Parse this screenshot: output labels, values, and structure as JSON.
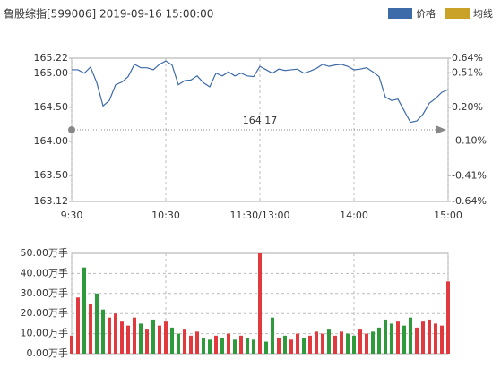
{
  "chart_data": [
    {
      "type": "line",
      "title": "鲁股综指[599006] 2019-09-16 15:00:00",
      "legend": [
        {
          "name": "价格",
          "color": "#3d6aa8"
        },
        {
          "name": "均线",
          "color": "#c9a227"
        }
      ],
      "x": [
        0,
        4,
        8,
        12,
        16,
        20,
        24,
        28,
        32,
        36,
        40,
        44,
        48,
        52,
        56,
        60,
        64,
        68,
        72,
        76,
        80,
        84,
        88,
        92,
        96,
        100,
        104,
        108,
        112,
        116,
        120,
        124,
        128,
        132,
        136,
        140,
        144,
        148,
        152,
        156,
        160,
        164,
        168,
        172,
        176,
        180,
        184,
        188,
        192,
        196,
        200,
        204,
        208,
        212,
        216,
        220,
        224,
        228,
        232,
        236,
        240
      ],
      "series": [
        {
          "name": "价格",
          "color": "#3d6aa8",
          "values": [
            165.05,
            165.05,
            165.0,
            165.09,
            164.86,
            164.52,
            164.6,
            164.83,
            164.87,
            164.95,
            165.13,
            165.08,
            165.08,
            165.05,
            165.13,
            165.18,
            165.12,
            164.83,
            164.89,
            164.9,
            164.96,
            164.86,
            164.8,
            165.0,
            164.96,
            165.02,
            164.96,
            165.0,
            164.96,
            164.95,
            165.1,
            165.05,
            165.0,
            165.06,
            165.04,
            165.05,
            165.06,
            165.0,
            165.03,
            165.07,
            165.13,
            165.1,
            165.12,
            165.13,
            165.1,
            165.05,
            165.06,
            165.08,
            165.02,
            164.95,
            164.65,
            164.6,
            164.62,
            164.45,
            164.28,
            164.3,
            164.4,
            164.56,
            164.63,
            164.72,
            164.76
          ]
        }
      ],
      "reference_line": 164.17,
      "xlim": [
        0,
        240
      ],
      "xticks": [
        {
          "value": 0,
          "label": "9:30"
        },
        {
          "value": 60,
          "label": "10:30"
        },
        {
          "value": 120,
          "label": "11:30/13:00"
        },
        {
          "value": 180,
          "label": "14:00"
        },
        {
          "value": 240,
          "label": "15:00"
        }
      ],
      "ylim": [
        163.12,
        165.22
      ],
      "yticks": [
        165.22,
        {
          "value": 165,
          "label": "165.00"
        },
        {
          "value": 164.5,
          "label": "164.50"
        },
        {
          "value": 164,
          "label": "164.00"
        },
        {
          "value": 163.5,
          "label": "163.50"
        },
        163.12
      ],
      "y2lim": [
        -0.64,
        0.64
      ],
      "y2ticks": [
        {
          "value": 0.64,
          "label": "0.64%"
        },
        {
          "value": 0.51,
          "label": "0.51%"
        },
        {
          "value": 0.2,
          "label": "0.20%"
        },
        {
          "value": -0.1,
          "label": "-0.10%"
        },
        {
          "value": -0.41,
          "label": "-0.41%"
        },
        {
          "value": -0.64,
          "label": "-0.64%"
        }
      ],
      "up_color": "#e0393e",
      "down_color": "#2e9a3b"
    },
    {
      "type": "bar",
      "x": [
        0,
        4,
        8,
        12,
        16,
        20,
        24,
        28,
        32,
        36,
        40,
        44,
        48,
        52,
        56,
        60,
        64,
        68,
        72,
        76,
        80,
        84,
        88,
        92,
        96,
        100,
        104,
        108,
        112,
        116,
        120,
        124,
        128,
        132,
        136,
        140,
        144,
        148,
        152,
        156,
        160,
        164,
        168,
        172,
        176,
        180,
        184,
        188,
        192,
        196,
        200,
        204,
        208,
        212,
        216,
        220,
        224,
        228,
        232,
        236,
        240
      ],
      "values": [
        9,
        28,
        43,
        25,
        30,
        22,
        18,
        20,
        16,
        14,
        18,
        15,
        12,
        17,
        14,
        16,
        13,
        10,
        12,
        9,
        11,
        8,
        7,
        9,
        8,
        10,
        7,
        9,
        8,
        7,
        50,
        6,
        18,
        8,
        9,
        7,
        10,
        8,
        9,
        11,
        10,
        12,
        9,
        11,
        10,
        9,
        12,
        10,
        11,
        13,
        17,
        15,
        16,
        14,
        18,
        13,
        16,
        17,
        15,
        14,
        36
      ],
      "xlim": [
        0,
        240
      ],
      "ylim": [
        0,
        50
      ],
      "yticks": [
        {
          "value": 0,
          "label": "0.00万手"
        },
        {
          "value": 10,
          "label": "10.00万手"
        },
        {
          "value": 20,
          "label": "20.00万手"
        },
        {
          "value": 30,
          "label": "30.00万手"
        },
        {
          "value": 40,
          "label": "40.00万手"
        },
        {
          "value": 50,
          "label": "50.00万手"
        }
      ]
    }
  ]
}
